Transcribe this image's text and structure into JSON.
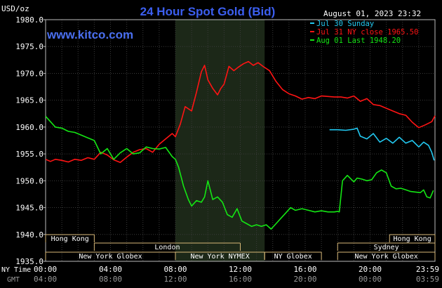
{
  "header": {
    "unit_label": "USD/oz",
    "title": "24 Hour Spot Gold (Bid)",
    "timestamp": "August 01, 2023 23:32",
    "watermark": "www.kitco.com"
  },
  "chart_data": {
    "type": "line",
    "title": "24 Hour Spot Gold (Bid)",
    "ylabel": "USD/oz",
    "ylim": [
      1935.0,
      1980.0
    ],
    "y_ticks": [
      1935.0,
      1940.0,
      1945.0,
      1950.0,
      1955.0,
      1960.0,
      1965.0,
      1970.0,
      1975.0,
      1980.0
    ],
    "y_tick_labels": [
      "1935.0",
      "1940.0",
      "1945.0",
      "1950.0",
      "1955.0",
      "1960.0",
      "1965.0",
      "1970.0",
      "1975.0",
      "1980.0"
    ],
    "x_range_hours": [
      0,
      24
    ],
    "x_ticks_hours": [
      0,
      4,
      8,
      12,
      16,
      20,
      24
    ],
    "x_tick_labels_ny": [
      "00:00",
      "04:00",
      "08:00",
      "12:00",
      "16:00",
      "20:00",
      "23:59"
    ],
    "x_tick_labels_gmt": [
      "04:00",
      "08:00",
      "12:00",
      "16:00",
      "20:00",
      "00:00",
      "03:59"
    ],
    "x_axis_row_labels": [
      "NY Time",
      "GMT"
    ],
    "grid": true,
    "legend_position": "top-right",
    "highlight_hours": [
      8,
      13.5
    ],
    "series": [
      {
        "name": "Jul 30 Sunday",
        "color": "#22c8f0",
        "x": [
          17.5,
          18.0,
          18.5,
          19.0,
          19.2,
          19.4,
          19.8,
          20.2,
          20.6,
          21.0,
          21.4,
          21.8,
          22.2,
          22.6,
          23.0,
          23.3,
          23.6,
          23.8,
          23.95
        ],
        "y": [
          1959.5,
          1959.5,
          1959.4,
          1959.6,
          1959.8,
          1958.3,
          1957.8,
          1958.8,
          1957.2,
          1957.9,
          1957.0,
          1958.1,
          1957.0,
          1957.5,
          1956.3,
          1957.2,
          1956.6,
          1955.3,
          1953.8
        ]
      },
      {
        "name": "Jul 31 NY close 1965.50",
        "color": "#ff1414",
        "x": [
          0,
          0.3,
          0.6,
          1.0,
          1.4,
          1.8,
          2.2,
          2.6,
          3.0,
          3.4,
          3.8,
          4.2,
          4.6,
          5.0,
          5.4,
          5.8,
          6.2,
          6.6,
          7.0,
          7.4,
          7.8,
          8.0,
          8.3,
          8.6,
          9.0,
          9.3,
          9.6,
          9.8,
          10.0,
          10.3,
          10.6,
          10.8,
          11.0,
          11.3,
          11.6,
          11.9,
          12.2,
          12.5,
          12.8,
          13.1,
          13.4,
          13.8,
          14.2,
          14.6,
          15.0,
          15.4,
          15.8,
          16.2,
          16.6,
          17.0,
          17.4,
          17.8,
          18.2,
          18.6,
          19.0,
          19.4,
          19.8,
          20.2,
          20.6,
          21.0,
          21.4,
          21.8,
          22.2,
          22.6,
          23.0,
          23.4,
          23.8,
          24.0
        ],
        "y": [
          1954.0,
          1953.6,
          1954.0,
          1953.8,
          1953.5,
          1954.0,
          1953.8,
          1954.3,
          1954.0,
          1955.3,
          1954.8,
          1953.9,
          1953.4,
          1954.4,
          1955.3,
          1955.8,
          1956.0,
          1955.3,
          1956.8,
          1957.8,
          1958.8,
          1958.2,
          1960.5,
          1963.8,
          1963.0,
          1966.5,
          1970.3,
          1971.5,
          1968.8,
          1967.2,
          1966.0,
          1967.2,
          1968.0,
          1971.3,
          1970.5,
          1971.2,
          1971.8,
          1972.2,
          1971.5,
          1972.0,
          1971.3,
          1970.5,
          1968.5,
          1967.0,
          1966.2,
          1965.8,
          1965.2,
          1965.5,
          1965.3,
          1965.8,
          1965.7,
          1965.6,
          1965.6,
          1965.4,
          1965.8,
          1964.8,
          1965.3,
          1964.2,
          1964.0,
          1963.5,
          1963.0,
          1962.5,
          1962.2,
          1960.9,
          1959.9,
          1960.4,
          1961.0,
          1962.1
        ]
      },
      {
        "name": "Aug 01 Last 1948.20",
        "color": "#14e614",
        "x": [
          0,
          0.3,
          0.6,
          1.0,
          1.4,
          1.8,
          2.2,
          2.6,
          3.0,
          3.4,
          3.8,
          4.2,
          4.6,
          5.0,
          5.4,
          5.8,
          6.2,
          6.6,
          7.0,
          7.4,
          7.8,
          8.0,
          8.2,
          8.5,
          8.8,
          9.0,
          9.3,
          9.6,
          9.8,
          10.0,
          10.3,
          10.6,
          10.9,
          11.2,
          11.5,
          11.8,
          12.1,
          12.4,
          12.7,
          13.0,
          13.3,
          13.6,
          13.9,
          14.2,
          14.5,
          14.8,
          15.1,
          15.4,
          15.8,
          16.2,
          16.6,
          17.0,
          17.4,
          17.8,
          18.0,
          18.1,
          18.3,
          18.6,
          19.0,
          19.2,
          19.5,
          19.8,
          20.1,
          20.4,
          20.7,
          21.0,
          21.3,
          21.6,
          21.9,
          22.2,
          22.5,
          22.8,
          23.1,
          23.3,
          23.5,
          23.7,
          23.9
        ],
        "y": [
          1962.0,
          1961.0,
          1960.0,
          1959.8,
          1959.2,
          1959.0,
          1958.5,
          1958.0,
          1957.5,
          1955.0,
          1956.0,
          1954.0,
          1955.2,
          1956.0,
          1955.0,
          1955.2,
          1956.3,
          1956.0,
          1955.9,
          1956.2,
          1954.5,
          1954.0,
          1952.5,
          1949.0,
          1946.5,
          1945.3,
          1946.3,
          1946.0,
          1947.0,
          1950.0,
          1946.5,
          1947.0,
          1946.0,
          1943.7,
          1943.2,
          1944.8,
          1942.5,
          1942.0,
          1941.5,
          1941.8,
          1941.5,
          1941.8,
          1941.0,
          1942.0,
          1943.0,
          1944.0,
          1945.0,
          1944.5,
          1944.8,
          1944.5,
          1944.2,
          1944.4,
          1944.2,
          1944.2,
          1944.3,
          1944.2,
          1950.0,
          1951.0,
          1949.8,
          1950.5,
          1950.3,
          1950.0,
          1950.2,
          1951.5,
          1952.0,
          1951.5,
          1949.0,
          1948.5,
          1948.6,
          1948.3,
          1948.0,
          1947.9,
          1947.8,
          1948.3,
          1947.0,
          1946.8,
          1948.2
        ]
      }
    ]
  },
  "sessions": [
    {
      "label": "Hong Kong",
      "start": 0.0,
      "end": 3.0,
      "row": 0
    },
    {
      "label": "Hong Kong",
      "start": 21.2,
      "end": 24.0,
      "row": 0
    },
    {
      "label": "London",
      "start": 3.0,
      "end": 12.0,
      "row": 1
    },
    {
      "label": "Sydney",
      "start": 18.0,
      "end": 24.0,
      "row": 1
    },
    {
      "label": "New York Globex",
      "start": 0.0,
      "end": 8.0,
      "row": 2
    },
    {
      "label": "New York NYMEX",
      "start": 8.0,
      "end": 13.5,
      "row": 2
    },
    {
      "label": "NY Globex",
      "start": 13.5,
      "end": 17.0,
      "row": 2
    },
    {
      "label": "New York Globex",
      "start": 18.0,
      "end": 24.0,
      "row": 2
    }
  ]
}
